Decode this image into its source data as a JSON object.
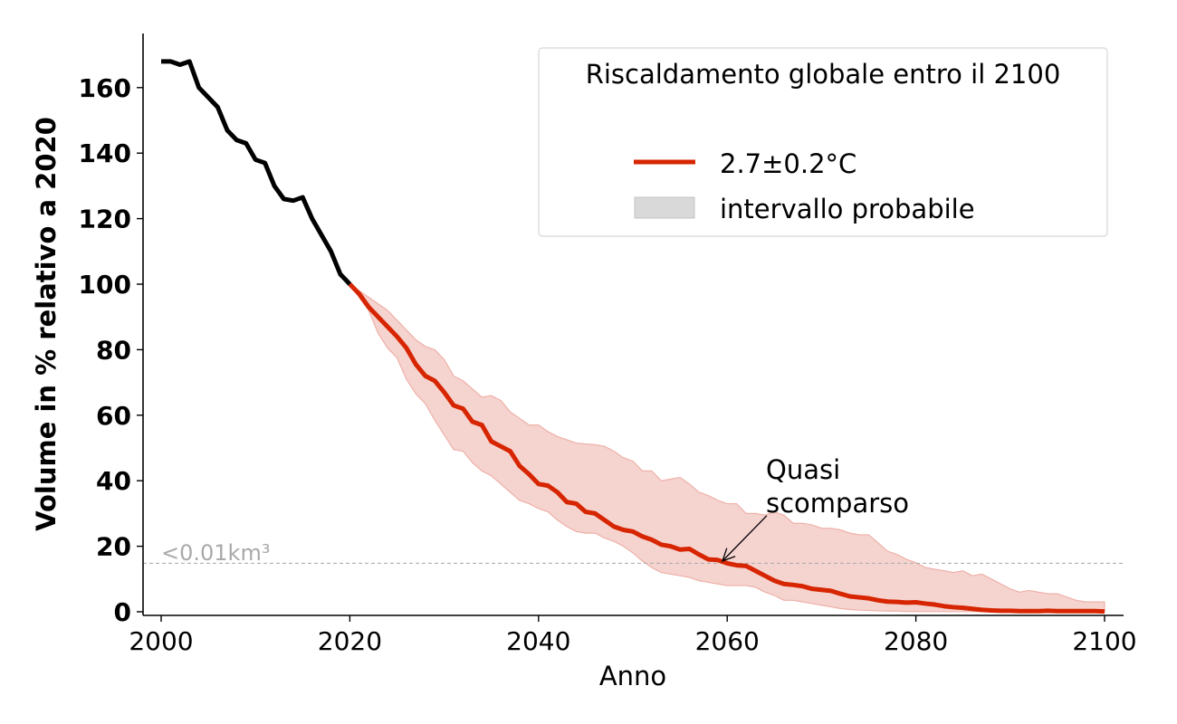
{
  "chart_data": {
    "type": "line",
    "title": "",
    "xlabel": "Anno",
    "ylabel": "Volume in % relativo a 2020",
    "xlim": [
      1998,
      2102
    ],
    "ylim": [
      -1,
      177
    ],
    "xticks": [
      2000,
      2020,
      2040,
      2060,
      2080,
      2100
    ],
    "yticks": [
      0,
      20,
      40,
      60,
      80,
      100,
      120,
      140,
      160
    ],
    "grid": false,
    "legend": {
      "title": "Riscaldamento globale entro il 2100",
      "placement": "top-right",
      "entries": [
        {
          "label": "2.7±0.2°C",
          "kind": "line",
          "color": "#d62500"
        },
        {
          "label": "intervallo probabile",
          "kind": "patch",
          "color": "#d9d9d9"
        }
      ]
    },
    "observed": {
      "color": "#000000",
      "x": [
        2000,
        2001,
        2002,
        2003,
        2004,
        2005,
        2006,
        2007,
        2008,
        2009,
        2010,
        2011,
        2012,
        2013,
        2014,
        2015,
        2016,
        2017,
        2018,
        2019,
        2020
      ],
      "y": [
        168,
        168,
        167,
        168,
        160,
        157,
        154,
        147,
        144,
        143,
        138,
        137,
        130,
        126,
        125.5,
        126.5,
        120,
        115,
        110,
        103,
        100
      ]
    },
    "projection": {
      "color": "#d62500",
      "band_color": "#f5d3cf",
      "x_start": 2020,
      "x_end": 2100,
      "mean": [
        100,
        97,
        93,
        90,
        87,
        84,
        80.5,
        75.5,
        72,
        70.5,
        67,
        63,
        62,
        58,
        57,
        52,
        50.5,
        49,
        44.5,
        42,
        39,
        38.5,
        36.5,
        33.5,
        33,
        30.5,
        30,
        28,
        26,
        25,
        24.5,
        23,
        22,
        20.5,
        20,
        19,
        19.2,
        17.5,
        16,
        15.8,
        14.8,
        14.2,
        14,
        12.5,
        11,
        9.5,
        8.5,
        8.2,
        7.8,
        7,
        6.7,
        6.4,
        5.5,
        4.7,
        4.4,
        4.1,
        3.5,
        3.1,
        3,
        2.8,
        2.9,
        2.5,
        2.2,
        1.7,
        1.4,
        1.2,
        0.9,
        0.6,
        0.4,
        0.3,
        0.3,
        0.2,
        0.2,
        0.2,
        0.3,
        0.2,
        0.2,
        0.2,
        0.2,
        0.2,
        0.1
      ],
      "upper": [
        100,
        98,
        96,
        94,
        92,
        89,
        86,
        83,
        81,
        80,
        77,
        72,
        70.5,
        68,
        65.5,
        66,
        64.5,
        61,
        59,
        57,
        57,
        55,
        53.5,
        52.5,
        51.5,
        51.2,
        51,
        50.5,
        49,
        47,
        46,
        43,
        43,
        40,
        40.5,
        41,
        39,
        36.5,
        35.5,
        34,
        33,
        33,
        30,
        30,
        29.5,
        30.5,
        29.5,
        27,
        27,
        26.5,
        25.5,
        25.5,
        25,
        24,
        23.5,
        23.5,
        21,
        18.5,
        17.5,
        16,
        15,
        13.5,
        13,
        12.5,
        12,
        12.5,
        11,
        11.5,
        10,
        8.5,
        7,
        6,
        6.5,
        6,
        5.5,
        5.5,
        4.5,
        3.5,
        3,
        3,
        3
      ],
      "lower": [
        100,
        96,
        92,
        85,
        80.5,
        77.5,
        71,
        66.5,
        63.5,
        58.5,
        54,
        49.5,
        49,
        45.5,
        43,
        41.5,
        39,
        36.5,
        34,
        33,
        31.5,
        30.5,
        28,
        26,
        24.5,
        24,
        24,
        22.5,
        21.5,
        20,
        18,
        15.5,
        13.5,
        12,
        11.5,
        11,
        10.5,
        9.5,
        9,
        8.5,
        8,
        8,
        8,
        7.5,
        6,
        5,
        3.5,
        3.5,
        3,
        2.5,
        2,
        1.5,
        1,
        0.7,
        0.5,
        0.4,
        0.3,
        0.2,
        0.2,
        0.1,
        0.1,
        0.05,
        0.05,
        0.05,
        0.05,
        0.05,
        0.05,
        0.05,
        0.05,
        0.05,
        0.05,
        0.05,
        0.05,
        0.05,
        0.05,
        0.05,
        0.05,
        0.05,
        0.05,
        0.05,
        0.05
      ]
    },
    "threshold": {
      "y": 14.8,
      "label": "<0.01km³",
      "color": "#b0b0b0"
    },
    "annotation": {
      "text_line1": "Quasi",
      "text_line2": "scomparso",
      "point": [
        2059.5,
        15.5
      ],
      "text_at": [
        2064,
        31
      ]
    }
  }
}
